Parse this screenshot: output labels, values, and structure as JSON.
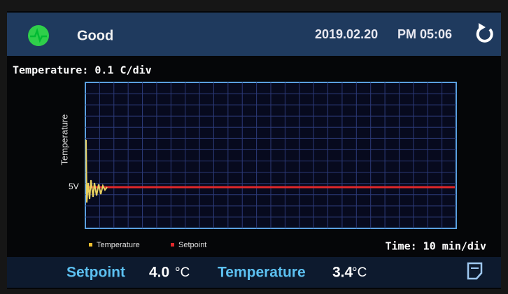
{
  "status_bar": {
    "status": "Good",
    "date": "2019.02.20",
    "time": "PM 05:06"
  },
  "graph": {
    "scale_label": "Temperature: 0.1 C/div",
    "y_axis_label": "Temperature",
    "level_label": "5V",
    "legend": [
      "Temperature",
      "Setpoint"
    ],
    "time_scale_label": "Time: 10 min/div"
  },
  "readings": [
    {
      "label": "Setpoint",
      "value": "4.0",
      "unit": "°C"
    },
    {
      "label": "Temperature",
      "value": "3.4",
      "unit": "°C"
    }
  ]
}
